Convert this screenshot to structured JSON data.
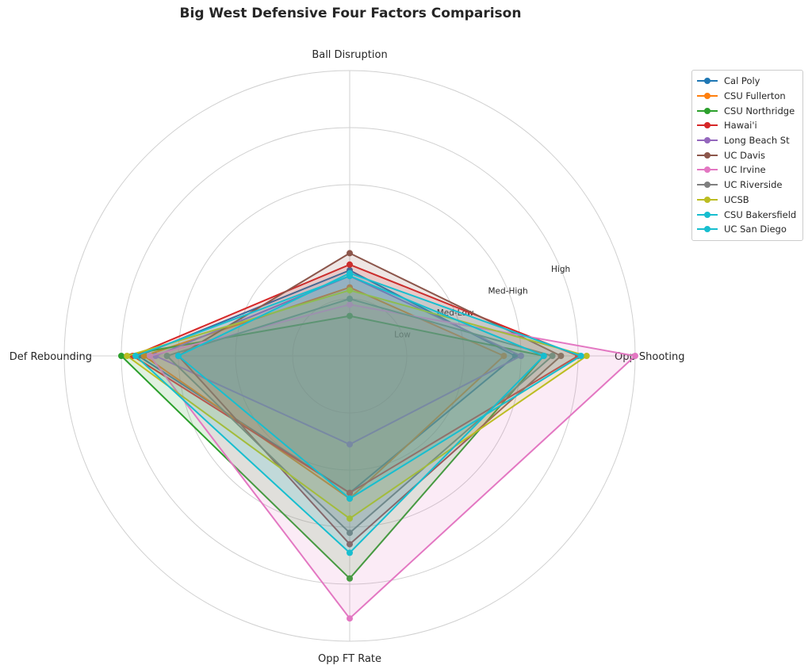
{
  "chart_data": {
    "type": "radar",
    "title": "Big West Defensive Four Factors Comparison",
    "axes": [
      "Ball Disruption",
      "Opp Shooting",
      "Opp FT Rate",
      "Def Rebounding"
    ],
    "rlim": [
      0,
      5
    ],
    "ring_labels": [
      "Low",
      "Med-Low",
      "Med-High",
      "High"
    ],
    "ring_values": [
      1,
      2,
      3,
      4
    ],
    "grid": true,
    "legend_position": "right",
    "series": [
      {
        "name": "Cal Poly",
        "color": "#1f77b4",
        "values": [
          1.5,
          2.9,
          2.4,
          3.7
        ]
      },
      {
        "name": "CSU Fullerton",
        "color": "#ff7f0e",
        "values": [
          1.2,
          2.7,
          2.5,
          3.6
        ]
      },
      {
        "name": "CSU Northridge",
        "color": "#2ca02c",
        "values": [
          0.7,
          3.4,
          3.9,
          4.0
        ]
      },
      {
        "name": "Hawai'i",
        "color": "#d62728",
        "values": [
          1.6,
          4.0,
          2.4,
          3.8
        ]
      },
      {
        "name": "Long Beach St",
        "color": "#9467bd",
        "values": [
          1.4,
          3.0,
          1.55,
          3.4
        ]
      },
      {
        "name": "UC Davis",
        "color": "#8c564b",
        "values": [
          1.8,
          3.7,
          3.3,
          3.0
        ]
      },
      {
        "name": "UC Irvine",
        "color": "#e377c2",
        "values": [
          0.9,
          5.0,
          4.6,
          3.5
        ]
      },
      {
        "name": "UC Riverside",
        "color": "#7f7f7f",
        "values": [
          1.0,
          3.55,
          3.1,
          3.2
        ]
      },
      {
        "name": "UCSB",
        "color": "#bcbd22",
        "values": [
          1.15,
          4.15,
          2.85,
          3.9
        ]
      },
      {
        "name": "CSU Bakersfield",
        "color": "#17becf",
        "values": [
          1.4,
          3.4,
          3.45,
          3.75
        ]
      },
      {
        "name": "UC San Diego",
        "color": "#17becf",
        "values": [
          1.45,
          4.05,
          2.5,
          3.0
        ]
      }
    ]
  }
}
